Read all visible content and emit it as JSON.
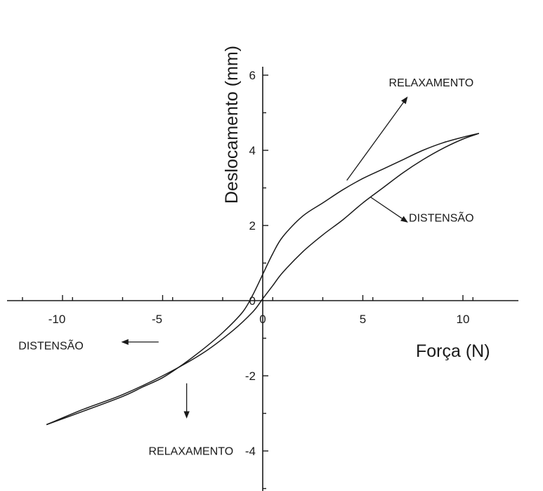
{
  "chart_data": {
    "type": "line",
    "xlabel": "Força (N)",
    "ylabel": "Deslocamento (mm)",
    "xlim": [
      -12.5,
      12.5
    ],
    "ylim": [
      -5.7,
      6.2
    ],
    "x_ticks": [
      -10,
      -5,
      0,
      5,
      10
    ],
    "y_ticks": [
      -4,
      -2,
      0,
      2,
      4,
      6
    ],
    "x_tick_labels": [
      "-10",
      "-5",
      "0",
      "5",
      "10"
    ],
    "y_tick_labels": [
      "-4",
      "-2",
      "0",
      "2",
      "4",
      "6"
    ],
    "grid": false,
    "legend": "none",
    "series": [
      {
        "points": [
          [
            -10.8,
            -3.3
          ],
          [
            -9,
            -2.9
          ],
          [
            -7,
            -2.5
          ],
          [
            -5,
            -2.0
          ],
          [
            -3,
            -1.4
          ],
          [
            -1.5,
            -0.8
          ],
          [
            -0.5,
            -0.3
          ],
          [
            0,
            0.05
          ],
          [
            0.5,
            0.4
          ],
          [
            1,
            0.75
          ],
          [
            2,
            1.3
          ],
          [
            3,
            1.75
          ],
          [
            4,
            2.15
          ],
          [
            5,
            2.6
          ],
          [
            6,
            3.0
          ],
          [
            7,
            3.4
          ],
          [
            8,
            3.75
          ],
          [
            9,
            4.05
          ],
          [
            10,
            4.3
          ],
          [
            10.8,
            4.45
          ]
        ]
      },
      {
        "points": [
          [
            10.8,
            4.45
          ],
          [
            10,
            4.35
          ],
          [
            9,
            4.2
          ],
          [
            8,
            4.0
          ],
          [
            7,
            3.75
          ],
          [
            6,
            3.5
          ],
          [
            5,
            3.25
          ],
          [
            4,
            2.95
          ],
          [
            3,
            2.6
          ],
          [
            2,
            2.25
          ],
          [
            1,
            1.7
          ],
          [
            0.5,
            1.25
          ],
          [
            0,
            0.7
          ],
          [
            -0.5,
            0.15
          ],
          [
            -1,
            -0.3
          ],
          [
            -2,
            -0.85
          ],
          [
            -3,
            -1.3
          ],
          [
            -4,
            -1.7
          ],
          [
            -5,
            -2.05
          ],
          [
            -6,
            -2.3
          ],
          [
            -7,
            -2.55
          ],
          [
            -9,
            -2.95
          ],
          [
            -10.8,
            -3.3
          ]
        ]
      }
    ],
    "annotations": [
      {
        "text": "RELAXAMENTO",
        "x": 6.3,
        "y": 5.7,
        "arrow_from": [
          4.2,
          3.2
        ],
        "arrow_to": [
          7.2,
          5.4
        ]
      },
      {
        "text": "DISTENSÃO",
        "x": 7.3,
        "y": 2.1,
        "arrow_from": [
          5.4,
          2.75
        ],
        "arrow_to": [
          7.2,
          2.1
        ]
      },
      {
        "text": "DISTENSÃO",
        "x": -12.2,
        "y": -1.3,
        "arrow_from": [
          -5.2,
          -1.1
        ],
        "arrow_to": [
          -7.0,
          -1.1
        ]
      },
      {
        "text": "RELAXAMENTO",
        "x": -5.7,
        "y": -4.1,
        "arrow_from": [
          -3.8,
          -2.2
        ],
        "arrow_to": [
          -3.8,
          -3.1
        ]
      }
    ]
  }
}
